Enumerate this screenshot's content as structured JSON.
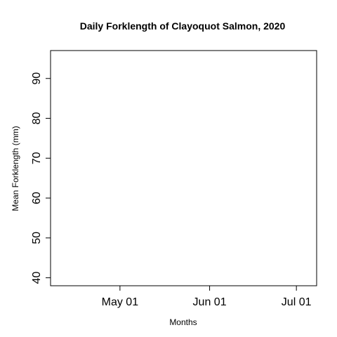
{
  "chart_data": {
    "type": "line",
    "title": "Daily Forklength of Clayoquot Salmon, 2020",
    "xlabel": "Months",
    "ylabel": "Mean Forklength (mm)",
    "x_scale": "date",
    "xlim": [
      "2020-04-07",
      "2020-07-08"
    ],
    "ylim": [
      38,
      97
    ],
    "x_ticks": [
      {
        "date": "2020-05-01",
        "label": "May 01"
      },
      {
        "date": "2020-06-01",
        "label": "Jun 01"
      },
      {
        "date": "2020-07-01",
        "label": "Jul 01"
      }
    ],
    "y_ticks": [
      40,
      50,
      60,
      70,
      80,
      90
    ],
    "series": [],
    "grid": false,
    "legend": "none"
  }
}
